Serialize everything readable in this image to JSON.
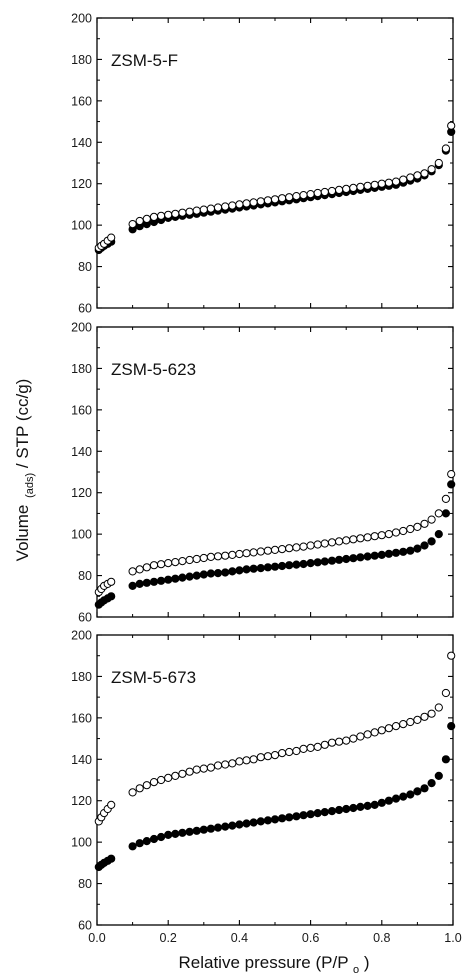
{
  "figure": {
    "ylabel": {
      "main": "Volume",
      "sub": "(ads)",
      "rest": "/ STP (cc/g)"
    },
    "xlabel": {
      "main": "Relative pressure (P/P",
      "sub": "o",
      "end": ")"
    },
    "colors": {
      "filled": "#000000",
      "open_fill": "#ffffff",
      "axis": "#000000"
    }
  },
  "chart_data": [
    {
      "type": "scatter",
      "label": "ZSM-5-F",
      "xlabel": "Relative pressure (P/Po)",
      "ylabel": "Volume (ads)/ STP (cc/g)",
      "xlim": [
        0.0,
        1.0
      ],
      "ylim": [
        60,
        200
      ],
      "xticks": [
        "0.0",
        "0.2",
        "0.4",
        "0.6",
        "0.8",
        "1.0"
      ],
      "yticks": [
        "60",
        "80",
        "100",
        "120",
        "140",
        "160",
        "180",
        "200"
      ],
      "series": [
        {
          "marker": "filled-circle",
          "x": [
            0.005,
            0.012,
            0.02,
            0.03,
            0.04,
            0.1,
            0.12,
            0.14,
            0.16,
            0.18,
            0.2,
            0.22,
            0.24,
            0.26,
            0.28,
            0.3,
            0.32,
            0.34,
            0.36,
            0.38,
            0.4,
            0.42,
            0.44,
            0.46,
            0.48,
            0.5,
            0.52,
            0.54,
            0.56,
            0.58,
            0.6,
            0.62,
            0.64,
            0.66,
            0.68,
            0.7,
            0.72,
            0.74,
            0.76,
            0.78,
            0.8,
            0.82,
            0.84,
            0.86,
            0.88,
            0.9,
            0.92,
            0.94,
            0.96,
            0.98,
            0.995
          ],
          "y": [
            88,
            89,
            90,
            91,
            92,
            98,
            99.5,
            100.5,
            101.5,
            102.5,
            103.5,
            104,
            104.5,
            105,
            105.5,
            106,
            106.5,
            107,
            107.5,
            108,
            108.5,
            109,
            109.5,
            110,
            110.5,
            111,
            111.5,
            112,
            112.5,
            113,
            113.5,
            114,
            114.5,
            115,
            115.5,
            116,
            116.5,
            117,
            117.5,
            118,
            118.5,
            119,
            119.5,
            120.5,
            121.5,
            122.5,
            124,
            126,
            129,
            136,
            145
          ]
        },
        {
          "marker": "open-circle",
          "x": [
            0.005,
            0.012,
            0.02,
            0.03,
            0.04,
            0.1,
            0.12,
            0.14,
            0.16,
            0.18,
            0.2,
            0.22,
            0.24,
            0.26,
            0.28,
            0.3,
            0.32,
            0.34,
            0.36,
            0.38,
            0.4,
            0.42,
            0.44,
            0.46,
            0.48,
            0.5,
            0.52,
            0.54,
            0.56,
            0.58,
            0.6,
            0.62,
            0.64,
            0.66,
            0.68,
            0.7,
            0.72,
            0.74,
            0.76,
            0.78,
            0.8,
            0.82,
            0.84,
            0.86,
            0.88,
            0.9,
            0.92,
            0.94,
            0.96,
            0.98,
            0.995
          ],
          "y": [
            89,
            90,
            91,
            92.5,
            94,
            100.5,
            102,
            103,
            104,
            104.5,
            105,
            105.5,
            106,
            106.5,
            107,
            107.5,
            108,
            108.5,
            109,
            109.5,
            110,
            110.5,
            111,
            111.5,
            112,
            112.5,
            113,
            113.5,
            114,
            114.5,
            115,
            115.5,
            116,
            116.5,
            117,
            117.5,
            118,
            118.5,
            119,
            119.5,
            120,
            120.5,
            121,
            122,
            123,
            124,
            125,
            127,
            130,
            137,
            148
          ]
        }
      ]
    },
    {
      "type": "scatter",
      "label": "ZSM-5-623",
      "xlabel": "Relative pressure (P/Po)",
      "ylabel": "Volume (ads)/ STP (cc/g)",
      "xlim": [
        0.0,
        1.0
      ],
      "ylim": [
        60,
        200
      ],
      "xticks": [
        "0.0",
        "0.2",
        "0.4",
        "0.6",
        "0.8",
        "1.0"
      ],
      "yticks": [
        "60",
        "80",
        "100",
        "120",
        "140",
        "160",
        "180",
        "200"
      ],
      "series": [
        {
          "marker": "filled-circle",
          "x": [
            0.005,
            0.012,
            0.02,
            0.03,
            0.04,
            0.1,
            0.12,
            0.14,
            0.16,
            0.18,
            0.2,
            0.22,
            0.24,
            0.26,
            0.28,
            0.3,
            0.32,
            0.34,
            0.36,
            0.38,
            0.4,
            0.42,
            0.44,
            0.46,
            0.48,
            0.5,
            0.52,
            0.54,
            0.56,
            0.58,
            0.6,
            0.62,
            0.64,
            0.66,
            0.68,
            0.7,
            0.72,
            0.74,
            0.76,
            0.78,
            0.8,
            0.82,
            0.84,
            0.86,
            0.88,
            0.9,
            0.92,
            0.94,
            0.96,
            0.98,
            0.995
          ],
          "y": [
            66,
            67,
            68,
            69,
            70,
            75,
            76,
            76.5,
            77,
            77.5,
            78,
            78.5,
            79,
            79.5,
            80,
            80.5,
            81,
            81.2,
            81.5,
            82,
            82.5,
            83,
            83.3,
            83.6,
            84,
            84.3,
            84.6,
            85,
            85.3,
            85.6,
            86,
            86.4,
            86.8,
            87.2,
            87.6,
            88,
            88.4,
            88.8,
            89.2,
            89.6,
            90,
            90.5,
            91,
            91.5,
            92,
            93,
            94.5,
            96.5,
            100,
            110,
            124
          ]
        },
        {
          "marker": "open-circle",
          "x": [
            0.005,
            0.012,
            0.02,
            0.03,
            0.04,
            0.1,
            0.12,
            0.14,
            0.16,
            0.18,
            0.2,
            0.22,
            0.24,
            0.26,
            0.28,
            0.3,
            0.32,
            0.34,
            0.36,
            0.38,
            0.4,
            0.42,
            0.44,
            0.46,
            0.48,
            0.5,
            0.52,
            0.54,
            0.56,
            0.58,
            0.6,
            0.62,
            0.64,
            0.66,
            0.68,
            0.7,
            0.72,
            0.74,
            0.76,
            0.78,
            0.8,
            0.82,
            0.84,
            0.86,
            0.88,
            0.9,
            0.92,
            0.94,
            0.96,
            0.98,
            0.995
          ],
          "y": [
            72,
            73.5,
            75,
            76,
            77,
            82,
            83,
            84,
            85,
            85.5,
            86,
            86.5,
            87,
            87.5,
            88,
            88.5,
            89,
            89.3,
            89.6,
            90,
            90.4,
            90.8,
            91.2,
            91.6,
            92,
            92.4,
            92.8,
            93.2,
            93.6,
            94,
            94.5,
            95,
            95.5,
            96,
            96.5,
            97,
            97.5,
            98,
            98.5,
            99,
            99.5,
            100,
            100.8,
            101.5,
            102.5,
            103.5,
            105,
            107,
            110,
            117,
            129
          ]
        }
      ]
    },
    {
      "type": "scatter",
      "label": "ZSM-5-673",
      "xlabel": "Relative pressure (P/Po)",
      "ylabel": "Volume (ads)/ STP (cc/g)",
      "xlim": [
        0.0,
        1.0
      ],
      "ylim": [
        60,
        200
      ],
      "xticks": [
        "0.0",
        "0.2",
        "0.4",
        "0.6",
        "0.8",
        "1.0"
      ],
      "yticks": [
        "60",
        "80",
        "100",
        "120",
        "140",
        "160",
        "180",
        "200"
      ],
      "series": [
        {
          "marker": "filled-circle",
          "x": [
            0.005,
            0.012,
            0.02,
            0.03,
            0.04,
            0.1,
            0.12,
            0.14,
            0.16,
            0.18,
            0.2,
            0.22,
            0.24,
            0.26,
            0.28,
            0.3,
            0.32,
            0.34,
            0.36,
            0.38,
            0.4,
            0.42,
            0.44,
            0.46,
            0.48,
            0.5,
            0.52,
            0.54,
            0.56,
            0.58,
            0.6,
            0.62,
            0.64,
            0.66,
            0.68,
            0.7,
            0.72,
            0.74,
            0.76,
            0.78,
            0.8,
            0.82,
            0.84,
            0.86,
            0.88,
            0.9,
            0.92,
            0.94,
            0.96,
            0.98,
            0.995
          ],
          "y": [
            88,
            89,
            90,
            91,
            92,
            98,
            99.5,
            100.5,
            101.5,
            102.5,
            103.5,
            104,
            104.5,
            105,
            105.5,
            106,
            106.5,
            107,
            107.5,
            108,
            108.5,
            109,
            109.5,
            110,
            110.5,
            111,
            111.5,
            112,
            112.5,
            113,
            113.5,
            114,
            114.5,
            115,
            115.5,
            116,
            116.5,
            117,
            117.5,
            118,
            119,
            120,
            121,
            122,
            123,
            124.5,
            126,
            128.5,
            132,
            140,
            156
          ]
        },
        {
          "marker": "open-circle",
          "x": [
            0.005,
            0.012,
            0.02,
            0.03,
            0.04,
            0.1,
            0.12,
            0.14,
            0.16,
            0.18,
            0.2,
            0.22,
            0.24,
            0.26,
            0.28,
            0.3,
            0.32,
            0.34,
            0.36,
            0.38,
            0.4,
            0.42,
            0.44,
            0.46,
            0.48,
            0.5,
            0.52,
            0.54,
            0.56,
            0.58,
            0.6,
            0.62,
            0.64,
            0.66,
            0.68,
            0.7,
            0.72,
            0.74,
            0.76,
            0.78,
            0.8,
            0.82,
            0.84,
            0.86,
            0.88,
            0.9,
            0.92,
            0.94,
            0.96,
            0.98,
            0.995
          ],
          "y": [
            110,
            112,
            114,
            116,
            118,
            124,
            126,
            127.5,
            129,
            130,
            131,
            132,
            133,
            134,
            135,
            135.5,
            136,
            137,
            137.5,
            138,
            139,
            139.5,
            140,
            141,
            141.5,
            142,
            143,
            143.5,
            144,
            145,
            145.5,
            146,
            147,
            148,
            148.5,
            149,
            150,
            151,
            152,
            153,
            154,
            155,
            156,
            157,
            158,
            159,
            160.5,
            162,
            165,
            172,
            190
          ]
        }
      ]
    }
  ]
}
